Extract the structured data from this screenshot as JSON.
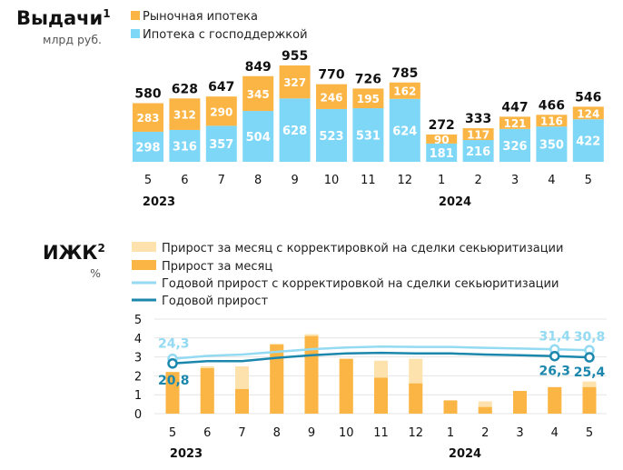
{
  "colors": {
    "market": "#fbb545",
    "state": "#7fd7f7",
    "market_light": "#fde2ad",
    "line_adj": "#93daf2",
    "line": "#1c87ad",
    "grid": "#e4e4e4"
  },
  "chart_data": [
    {
      "type": "bar",
      "stacked": true,
      "title": "Выдачи",
      "title_sup": "1",
      "unit": "млрд руб.",
      "legend_placement": "top",
      "categories": [
        "5",
        "6",
        "7",
        "8",
        "9",
        "10",
        "11",
        "12",
        "1",
        "2",
        "3",
        "4",
        "5"
      ],
      "years": [
        "2023",
        "2024"
      ],
      "series": [
        {
          "name": "Ипотека с господдержкой",
          "values": [
            298,
            316,
            357,
            504,
            628,
            523,
            531,
            624,
            181,
            216,
            326,
            350,
            422
          ]
        },
        {
          "name": "Рыночная ипотека",
          "values": [
            283,
            312,
            290,
            345,
            327,
            246,
            195,
            162,
            90,
            117,
            121,
            116,
            124
          ]
        }
      ],
      "totals": [
        580,
        628,
        647,
        849,
        955,
        770,
        726,
        785,
        272,
        333,
        447,
        466,
        546
      ]
    },
    {
      "type": "bar+line",
      "title": "ИЖК",
      "title_sup": "2",
      "unit": "%",
      "legend_placement": "top",
      "categories": [
        "5",
        "6",
        "7",
        "8",
        "9",
        "10",
        "11",
        "12",
        "1",
        "2",
        "3",
        "4",
        "5"
      ],
      "years": [
        "2023",
        "2024"
      ],
      "ylim": [
        0,
        5
      ],
      "yticks": [
        "0",
        "1",
        "2",
        "3",
        "4",
        "5"
      ],
      "grid": true,
      "series": [
        {
          "name": "Прирост за месяц с корректировкой на сделки секьюритизации",
          "type": "bar",
          "values": [
            2.2,
            2.5,
            2.5,
            3.7,
            4.2,
            2.9,
            2.8,
            2.9,
            0.7,
            0.65,
            1.2,
            1.4,
            1.7
          ]
        },
        {
          "name": "Прирост за месяц",
          "type": "bar",
          "values": [
            2.2,
            2.4,
            1.3,
            3.65,
            4.1,
            2.9,
            1.9,
            1.6,
            0.7,
            0.35,
            1.2,
            1.4,
            1.4
          ]
        },
        {
          "name": "Годовой прирост с корректировкой на сделки секьюритизации",
          "type": "line",
          "values": [
            24.3,
            26.5,
            27.5,
            29.5,
            31.5,
            32.8,
            33.5,
            33.2,
            33.2,
            32.5,
            32.0,
            31.4,
            30.8
          ]
        },
        {
          "name": "Годовой прирост",
          "type": "line",
          "values": [
            20.8,
            22.5,
            22.5,
            25.0,
            27.0,
            28.3,
            28.8,
            28.3,
            28.3,
            27.5,
            27.0,
            26.3,
            25.4
          ]
        }
      ],
      "annotations": {
        "adj_first": "24,3",
        "adj_last": [
          "31,4",
          "30,8"
        ],
        "plain_first": "20,8",
        "plain_last": [
          "26,3",
          "25,4"
        ]
      }
    }
  ]
}
